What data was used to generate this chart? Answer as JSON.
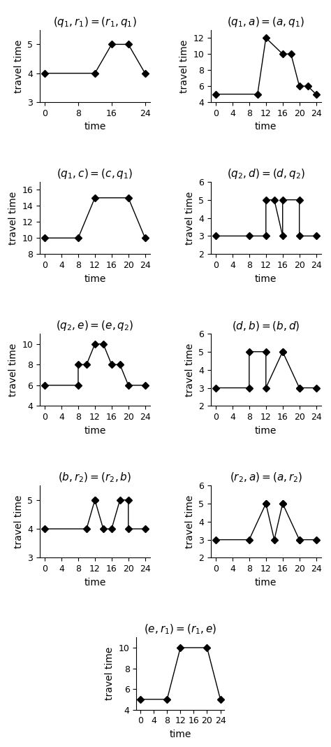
{
  "plots": [
    {
      "title": "$(q_1,r_1) = (r_1,q_1)$",
      "x": [
        0,
        12,
        16,
        20,
        24
      ],
      "y": [
        4,
        4,
        5,
        5,
        4
      ],
      "ylim": [
        3,
        5.5
      ],
      "yticks": [
        3,
        4,
        5
      ],
      "xticks": [
        0,
        8,
        16,
        24
      ]
    },
    {
      "title": "$(q_1,a) = (a,q_1)$",
      "x": [
        0,
        10,
        12,
        16,
        18,
        20,
        22,
        24
      ],
      "y": [
        5,
        5,
        12,
        10,
        10,
        6,
        6,
        5
      ],
      "ylim": [
        4,
        13
      ],
      "yticks": [
        4,
        6,
        8,
        10,
        12
      ],
      "xticks": [
        0,
        4,
        8,
        12,
        16,
        20,
        24
      ]
    },
    {
      "title": "$(q_1,c) = (c,q_1)$",
      "x": [
        0,
        8,
        12,
        20,
        24
      ],
      "y": [
        10,
        10,
        15,
        15,
        10
      ],
      "ylim": [
        8,
        17
      ],
      "yticks": [
        8,
        10,
        12,
        14,
        16
      ],
      "xticks": [
        0,
        4,
        8,
        12,
        16,
        20,
        24
      ]
    },
    {
      "title": "$(q_2,d) = (d,q_2)$",
      "x": [
        0,
        8,
        12,
        12,
        14,
        16,
        16,
        20,
        20,
        24
      ],
      "y": [
        3,
        3,
        3,
        5,
        5,
        3,
        5,
        5,
        3,
        3
      ],
      "ylim": [
        2,
        6
      ],
      "yticks": [
        2,
        3,
        4,
        5,
        6
      ],
      "xticks": [
        0,
        4,
        8,
        12,
        16,
        20,
        24
      ]
    },
    {
      "title": "$(q_2,e) = (e,q_2)$",
      "x": [
        0,
        8,
        8,
        10,
        12,
        14,
        16,
        18,
        20,
        24
      ],
      "y": [
        6,
        6,
        8,
        8,
        10,
        10,
        8,
        8,
        6,
        6
      ],
      "ylim": [
        4,
        11
      ],
      "yticks": [
        4,
        6,
        8,
        10
      ],
      "xticks": [
        0,
        4,
        8,
        12,
        16,
        20,
        24
      ]
    },
    {
      "title": "$(d,b) = (b,d)$",
      "x": [
        0,
        8,
        8,
        12,
        12,
        16,
        16,
        20,
        20,
        24
      ],
      "y": [
        3,
        3,
        5,
        5,
        3,
        5,
        5,
        3,
        3,
        3
      ],
      "ylim": [
        2,
        6
      ],
      "yticks": [
        2,
        3,
        4,
        5,
        6
      ],
      "xticks": [
        0,
        4,
        8,
        12,
        16,
        20,
        24
      ]
    },
    {
      "title": "$(b,r_2) = (r_2,b)$",
      "x": [
        0,
        10,
        12,
        12,
        14,
        16,
        18,
        20,
        20,
        24
      ],
      "y": [
        4,
        4,
        5,
        5,
        4,
        4,
        5,
        5,
        4,
        4
      ],
      "ylim": [
        3,
        5.5
      ],
      "yticks": [
        3,
        4,
        5
      ],
      "xticks": [
        0,
        4,
        8,
        12,
        16,
        20,
        24
      ]
    },
    {
      "title": "$(r_2,a) = (a,r_2)$",
      "x": [
        0,
        8,
        12,
        12,
        14,
        16,
        16,
        20,
        20,
        24
      ],
      "y": [
        3,
        3,
        5,
        5,
        3,
        5,
        5,
        3,
        3,
        3
      ],
      "ylim": [
        2,
        6
      ],
      "yticks": [
        2,
        3,
        4,
        5,
        6
      ],
      "xticks": [
        0,
        4,
        8,
        12,
        16,
        20,
        24
      ]
    },
    {
      "title": "$(e,r_1) = (r_1,e)$",
      "x": [
        0,
        8,
        12,
        20,
        24
      ],
      "y": [
        5,
        5,
        10,
        10,
        5
      ],
      "ylim": [
        4,
        11
      ],
      "yticks": [
        4,
        6,
        8,
        10
      ],
      "xticks": [
        0,
        4,
        8,
        12,
        16,
        20,
        24
      ]
    }
  ],
  "marker": "D",
  "markersize": 5,
  "color": "black",
  "linewidth": 1.0,
  "xlabel": "time",
  "ylabel": "travel time",
  "title_fontsize": 11,
  "label_fontsize": 10,
  "tick_fontsize": 9
}
